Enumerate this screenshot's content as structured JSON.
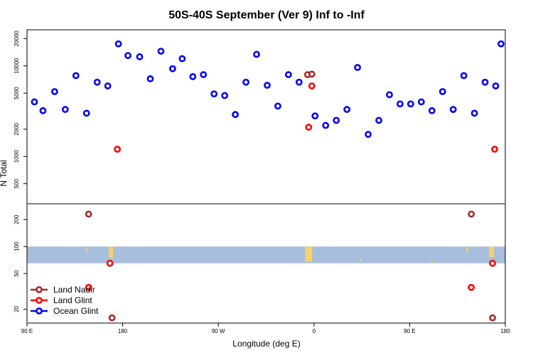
{
  "chart_data": {
    "type": "scatter",
    "title": "50S-40S September (Ver 9)   Inf to -Inf",
    "xlabel": "Longitude (deg E)",
    "ylabel": "N Total",
    "x_tick_labels": [
      "90 E",
      "180",
      "90 W",
      "0",
      "90 E",
      "180"
    ],
    "x_tick_values": [
      90,
      180,
      270,
      360,
      450,
      540
    ],
    "xlim": [
      90,
      540
    ],
    "y_scale": "log",
    "upper_panel": {
      "ylim": [
        300,
        25000
      ],
      "y_ticks": [
        500,
        1000,
        2000,
        5000,
        10000,
        20000
      ],
      "y_tick_labels": [
        "500",
        "1000",
        "2000",
        "5000",
        "10000",
        "20000"
      ]
    },
    "lower_panel": {
      "ylim": [
        14,
        300
      ],
      "y_ticks": [
        20,
        50,
        100,
        200
      ],
      "y_tick_labels": [
        "20",
        "50",
        "100",
        "200"
      ],
      "ocean_band_range": [
        65,
        100
      ]
    },
    "series": [
      {
        "name": "Land Nadir",
        "color": "#a52a2a",
        "x": [
          148,
          170,
          354,
          358,
          508,
          528
        ],
        "y": [
          230,
          16,
          8000,
          8100,
          230,
          16
        ]
      },
      {
        "name": "Land Glint",
        "color": "#ff0000",
        "x": [
          148,
          168,
          175,
          355,
          358,
          508,
          528,
          530
        ],
        "y": [
          35,
          65,
          1200,
          2100,
          6000,
          35,
          65,
          1200
        ]
      },
      {
        "name": "Ocean Glint",
        "color": "#0000ff",
        "x": [
          97,
          105,
          116,
          126,
          136,
          146,
          156,
          166,
          176,
          185,
          196,
          206,
          216,
          227,
          236,
          246,
          256,
          266,
          276,
          286,
          296,
          306,
          316,
          326,
          336,
          346,
          361,
          371,
          381,
          391,
          401,
          411,
          421,
          431,
          441,
          451,
          461,
          471,
          481,
          491,
          501,
          511,
          521,
          531,
          536
        ],
        "y": [
          4000,
          3200,
          5200,
          3300,
          7800,
          3000,
          6600,
          6000,
          17500,
          13000,
          12600,
          7200,
          14500,
          9300,
          12000,
          7600,
          8000,
          4900,
          4700,
          2900,
          6600,
          13400,
          6100,
          3600,
          8000,
          6600,
          2800,
          2200,
          2500,
          3300,
          9600,
          1750,
          2500,
          4800,
          3800,
          3800,
          4000,
          3200,
          5200,
          3300,
          7800,
          3000,
          6600,
          6000,
          17500
        ]
      }
    ],
    "legend": {
      "position": "bottom-left",
      "entries": [
        "Land Nadir",
        "Land Glint",
        "Ocean Glint"
      ]
    }
  }
}
